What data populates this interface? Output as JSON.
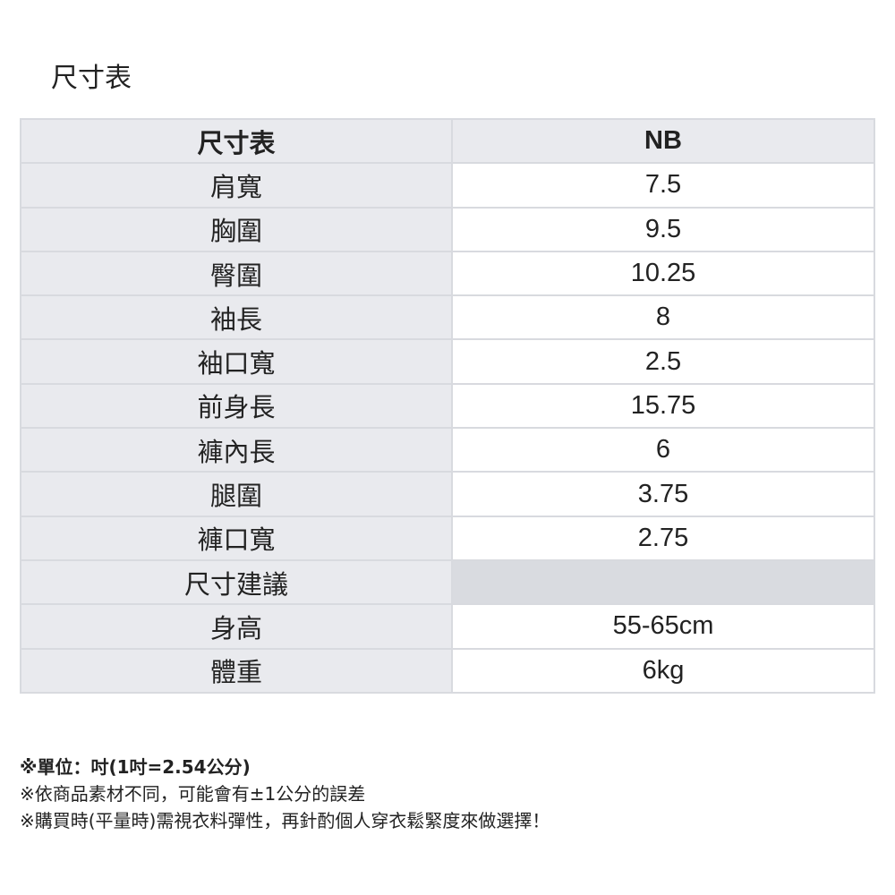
{
  "title": "尺寸表",
  "table": {
    "header": [
      "尺寸表",
      "NB"
    ],
    "rows": [
      [
        "肩寬",
        "7.5"
      ],
      [
        "胸圍",
        "9.5"
      ],
      [
        "臀圍",
        "10.25"
      ],
      [
        "袖長",
        "8"
      ],
      [
        "袖口寬",
        "2.5"
      ],
      [
        "前身長",
        "15.75"
      ],
      [
        "褲內長",
        "6"
      ],
      [
        "腿圍",
        "3.75"
      ],
      [
        "褲口寬",
        "2.75"
      ],
      [
        "尺寸建議",
        ""
      ],
      [
        "身高",
        "55-65cm"
      ],
      [
        "體重",
        "6kg"
      ]
    ]
  },
  "notes": [
    "※單位：吋(1吋=2.54公分)",
    "※依商品素材不同，可能會有±1公分的誤差",
    "※購買時(平量時)需視衣料彈性，再針酌個人穿衣鬆緊度來做選擇！"
  ]
}
